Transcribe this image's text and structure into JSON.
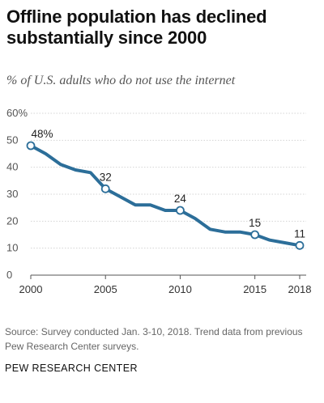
{
  "title": "Offline population has declined\nsubstantially since 2000",
  "subtitle": "% of U.S. adults who do not use the internet",
  "source": "Source:  Survey conducted Jan. 3-10, 2018. Trend data from previous Pew Research Center surveys.",
  "organization": "PEW RESEARCH CENTER",
  "chart_data": {
    "type": "line",
    "title": "Offline population has declined substantially since 2000",
    "subtitle": "% of U.S. adults who do not use the internet",
    "xlabel": "",
    "ylabel": "",
    "xlim": [
      2000,
      2018
    ],
    "ylim": [
      0,
      60
    ],
    "grid": true,
    "legend": "none",
    "x_ticks": [
      "2000",
      "2005",
      "2010",
      "2015",
      "2018"
    ],
    "x_tick_values": [
      2000,
      2005,
      2010,
      2015,
      2018
    ],
    "y_ticks": [
      "0",
      "10",
      "20",
      "30",
      "40",
      "50",
      "60%"
    ],
    "y_tick_values": [
      0,
      10,
      20,
      30,
      40,
      50,
      60
    ],
    "line_color": "#2c6e99",
    "x": [
      2000,
      2001,
      2002,
      2003,
      2004,
      2005,
      2006,
      2007,
      2008,
      2009,
      2010,
      2011,
      2012,
      2013,
      2014,
      2015,
      2016,
      2017,
      2018
    ],
    "values": [
      48,
      45,
      41,
      39,
      38,
      32,
      29,
      26,
      26,
      24,
      24,
      21,
      17,
      16,
      16,
      15,
      13,
      12,
      11
    ],
    "annotated_points": [
      {
        "x": 2000,
        "y": 48,
        "label": "48%"
      },
      {
        "x": 2005,
        "y": 32,
        "label": "32"
      },
      {
        "x": 2010,
        "y": 24,
        "label": "24"
      },
      {
        "x": 2015,
        "y": 15,
        "label": "15"
      },
      {
        "x": 2018,
        "y": 11,
        "label": "11"
      }
    ]
  }
}
